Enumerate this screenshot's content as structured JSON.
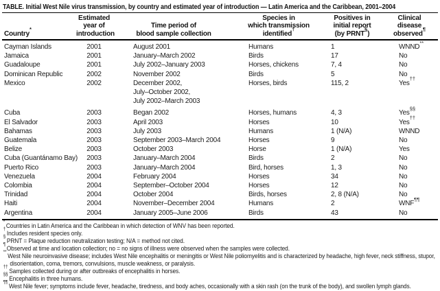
{
  "colors": {
    "background": "#ffffff",
    "text": "#1a1a1a",
    "rule": "#000000"
  },
  "title": "TABLE. Initial West Nile virus transmission, by country and estimated year of introduction — Latin America and the Caribbean, 2001–2004",
  "table": {
    "headers": [
      {
        "pre": "Country",
        "sup": "*"
      },
      {
        "pre": "Estimated\nyear of\nintroduction"
      },
      {
        "pre": "Time period of\nblood sample collection"
      },
      {
        "pre": "Species in\nwhich transmission\nidentified",
        "sup": "†"
      },
      {
        "pre": "Positives in\ninitial report\n(by PRNT",
        "sup": "§",
        "post": ")"
      },
      {
        "pre": "Clinical\ndisease\nobserved",
        "sup": "¶"
      }
    ],
    "rows": [
      {
        "country": "Cayman Islands",
        "year": "2001",
        "period": "August 2001",
        "species": "Humans",
        "positives": "1",
        "clinical": "WNND",
        "clinical_sup": "**"
      },
      {
        "country": "Jamaica",
        "year": "2001",
        "period": "January–March 2002",
        "species": "Birds",
        "positives": "17",
        "clinical": "No"
      },
      {
        "country": "Guadaloupe",
        "year": "2001",
        "period": "July 2002–January 2003",
        "species": "Horses, chickens",
        "positives": "7, 4",
        "clinical": "No"
      },
      {
        "country": "Dominican Republic",
        "year": "2002",
        "period": "November 2002",
        "species": "Birds",
        "positives": "5",
        "clinical": "No"
      },
      {
        "country": "Mexico",
        "year": "2002",
        "period": "December 2002,\nJuly–October 2002,\nJuly 2002–March 2003",
        "species": "Horses, birds",
        "positives": "115, 2",
        "clinical": "Yes",
        "clinical_sup": "††"
      },
      {
        "country": "Cuba",
        "year": "2003",
        "period": "Began 2002",
        "species": "Horses, humans",
        "positives": "4, 3",
        "clinical": "Yes",
        "clinical_sup": "§§"
      },
      {
        "country": "El Salvador",
        "year": "2003",
        "period": "April 2003",
        "species": "Horses",
        "positives": "10",
        "clinical": "Yes",
        "clinical_sup": "††"
      },
      {
        "country": "Bahamas",
        "year": "2003",
        "period": "July 2003",
        "species": "Humans",
        "positives": "1 (N/A)",
        "clinical": "WNND"
      },
      {
        "country": "Guatemala",
        "year": "2003",
        "period": "September 2003–March 2004",
        "species": "Horses",
        "positives": "9",
        "clinical": "No"
      },
      {
        "country": "Belize",
        "year": "2003",
        "period": "October 2003",
        "species": "Horse",
        "positives": "1 (N/A)",
        "clinical": "Yes"
      },
      {
        "country": "Cuba (Guantánamo Bay)",
        "year": "2003",
        "period": "January–March 2004",
        "species": "Birds",
        "positives": "2",
        "clinical": "No"
      },
      {
        "country": "Puerto Rico",
        "year": "2003",
        "period": "January–March 2004",
        "species": "Bird, horses",
        "positives": "1, 3",
        "clinical": "No"
      },
      {
        "country": "Venezuela",
        "year": "2004",
        "period": "February 2004",
        "species": "Horses",
        "positives": "34",
        "clinical": "No"
      },
      {
        "country": "Colombia",
        "year": "2004",
        "period": "September–October 2004",
        "species": "Horses",
        "positives": "12",
        "clinical": "No"
      },
      {
        "country": "Trinidad",
        "year": "2004",
        "period": "October 2004",
        "species": "Birds, horses",
        "positives": "2, 8 (N/A)",
        "clinical": "No"
      },
      {
        "country": "Haiti",
        "year": "2004",
        "period": "November–December 2004",
        "species": "Humans",
        "positives": "2",
        "clinical": "WNF",
        "clinical_sup": "¶¶"
      },
      {
        "country": "Argentina",
        "year": "2004",
        "period": "January 2005–June 2006",
        "species": "Birds",
        "positives": "43",
        "clinical": "No"
      }
    ]
  },
  "footnotes": [
    {
      "marker": "*",
      "text": "Countries in Latin America and the Caribbean in which detection of WNV has been reported."
    },
    {
      "marker": "†",
      "text": "Includes resident species only."
    },
    {
      "marker": "§",
      "text": "PRNT = Plaque reduction neutralization testing; N/A = method not cited."
    },
    {
      "marker": "¶",
      "text": "Observed at time and location collection; no = no signs of illness were observed when the samples were collected."
    },
    {
      "marker": "**",
      "text": "West Nile neuroinvasive disease; includes West Nile encephalitis or meningitis or West Nile poliomyelitis and is characterized by headache, high fever, neck stiffness, stupor, disorientation, coma, tremors, convulsions, muscle weakness, or paralysis."
    },
    {
      "marker": "††",
      "text": "Samples collected during or after outbreaks of encephalitis in horses."
    },
    {
      "marker": "§§",
      "text": "Encephalitis in three humans."
    },
    {
      "marker": "¶¶",
      "text": "West Nile fever; symptoms include fever, headache, tiredness, and body aches, occasionally with a skin rash (on the trunk of the body), and swollen lymph glands."
    }
  ]
}
